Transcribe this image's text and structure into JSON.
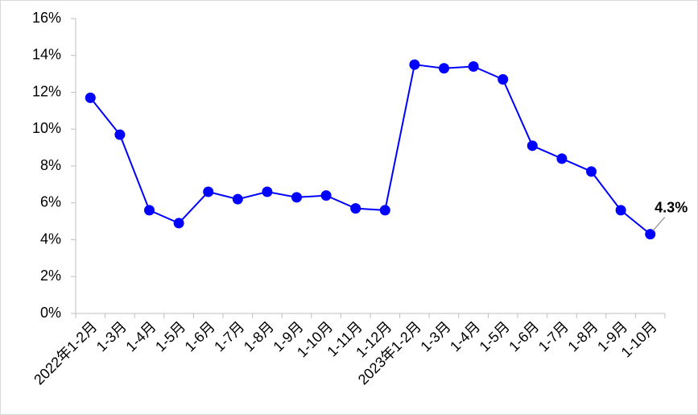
{
  "chart_data": {
    "type": "line",
    "categories": [
      "2022年1-2月",
      "1-3月",
      "1-4月",
      "1-5月",
      "1-6月",
      "1-7月",
      "1-8月",
      "1-9月",
      "1-10月",
      "1-11月",
      "1-12月",
      "2023年1-2月",
      "1-3月",
      "1-4月",
      "1-5月",
      "1-6月",
      "1-7月",
      "1-8月",
      "1-9月",
      "1-10月"
    ],
    "series": [
      {
        "color": "#0000ff",
        "values": [
          11.7,
          9.7,
          5.6,
          4.9,
          6.6,
          6.2,
          6.6,
          6.3,
          6.4,
          5.7,
          5.6,
          13.5,
          13.3,
          13.4,
          12.7,
          9.1,
          8.4,
          7.7,
          5.6,
          4.3
        ],
        "value_labels": [
          null,
          null,
          null,
          null,
          null,
          null,
          null,
          null,
          null,
          null,
          null,
          null,
          null,
          null,
          null,
          null,
          null,
          null,
          null,
          "4.3%"
        ]
      }
    ],
    "ylim": [
      0,
      16
    ],
    "yticks": [
      {
        "value": 0,
        "label": "0%"
      },
      {
        "value": 2,
        "label": "2%"
      },
      {
        "value": 4,
        "label": "4%"
      },
      {
        "value": 6,
        "label": "6%"
      },
      {
        "value": 8,
        "label": "8%"
      },
      {
        "value": 10,
        "label": "10%"
      },
      {
        "value": 12,
        "label": "12%"
      },
      {
        "value": 14,
        "label": "14%"
      },
      {
        "value": 16,
        "label": "16%"
      }
    ],
    "grid": false
  }
}
